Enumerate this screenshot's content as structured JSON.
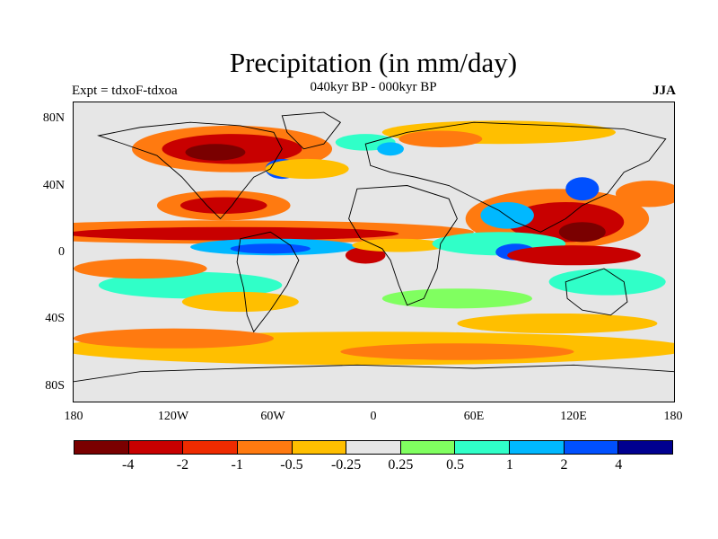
{
  "title": "Precipitation (in mm/day)",
  "subtitle": "040kyr BP - 000kyr BP",
  "experiment": "Expt = tdxoF-tdxoa",
  "season": "JJA",
  "lat_labels": [
    "80N",
    "40N",
    "0",
    "40S",
    "80S"
  ],
  "lon_labels": [
    "180",
    "120W",
    "60W",
    "0",
    "60E",
    "120E",
    "180"
  ],
  "colorbar": {
    "labels": [
      "-4",
      "-2",
      "-1",
      "-0.5",
      "-0.25",
      "0.25",
      "0.5",
      "1",
      "2",
      "4"
    ],
    "colors": [
      "#7a0000",
      "#c80000",
      "#ee2b00",
      "#ff7a10",
      "#ffbf00",
      "#e6e6e6",
      "#80ff60",
      "#30ffc8",
      "#00b8ff",
      "#0050ff",
      "#000090"
    ]
  },
  "colors": {
    "neutral": "#e6e6e6",
    "dry_strong": "#c80000",
    "dry": "#ff7a10",
    "wet": "#00b8ff",
    "wet_strong": "#0050ff",
    "coast": "#000000"
  }
}
